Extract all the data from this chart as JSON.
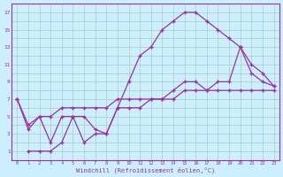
{
  "xlabel": "Windchill (Refroidissement éolien,°C)",
  "bg_color": "#cceeff",
  "grid_color": "#aaccbb",
  "line_color": "#993399",
  "xlim": [
    -0.5,
    23.5
  ],
  "ylim": [
    0,
    18
  ],
  "xticks": [
    0,
    1,
    2,
    3,
    4,
    5,
    6,
    7,
    8,
    9,
    10,
    11,
    12,
    13,
    14,
    15,
    16,
    17,
    18,
    19,
    20,
    21,
    22,
    23
  ],
  "yticks": [
    1,
    3,
    5,
    7,
    9,
    11,
    13,
    15,
    17
  ],
  "series": {
    "line1_x": [
      0,
      1,
      2,
      3,
      4,
      5,
      6,
      7,
      8,
      9,
      10,
      11,
      12,
      13,
      14,
      15,
      16,
      17,
      18,
      19,
      20,
      21,
      22,
      23
    ],
    "line1_y": [
      7,
      4,
      5,
      5,
      6,
      6,
      6,
      6,
      6,
      7,
      7,
      7,
      7,
      7,
      7,
      8,
      8,
      8,
      8,
      8,
      8,
      8,
      8,
      8
    ],
    "line2_x": [
      0,
      1,
      2,
      3,
      4,
      5,
      6,
      7,
      8,
      9,
      10,
      11,
      12,
      13,
      14,
      15,
      16,
      17,
      18,
      19,
      20,
      21,
      22,
      23
    ],
    "line2_y": [
      7,
      3.5,
      5,
      2,
      5,
      5,
      2,
      3,
      3,
      6,
      6,
      6,
      7,
      7,
      8,
      9,
      9,
      8,
      9,
      9,
      13,
      11,
      10,
      8.5
    ],
    "line3_x": [
      1,
      2,
      3,
      4,
      5,
      6,
      7,
      8,
      9,
      10,
      11,
      12,
      13,
      14,
      15,
      16,
      17,
      18,
      19,
      20,
      21,
      22,
      23
    ],
    "line3_y": [
      1,
      1,
      1,
      2,
      5,
      5,
      3.5,
      3,
      6,
      9,
      12,
      13,
      15,
      16,
      17,
      17,
      16,
      15,
      14,
      13,
      10,
      9,
      8.5
    ]
  }
}
